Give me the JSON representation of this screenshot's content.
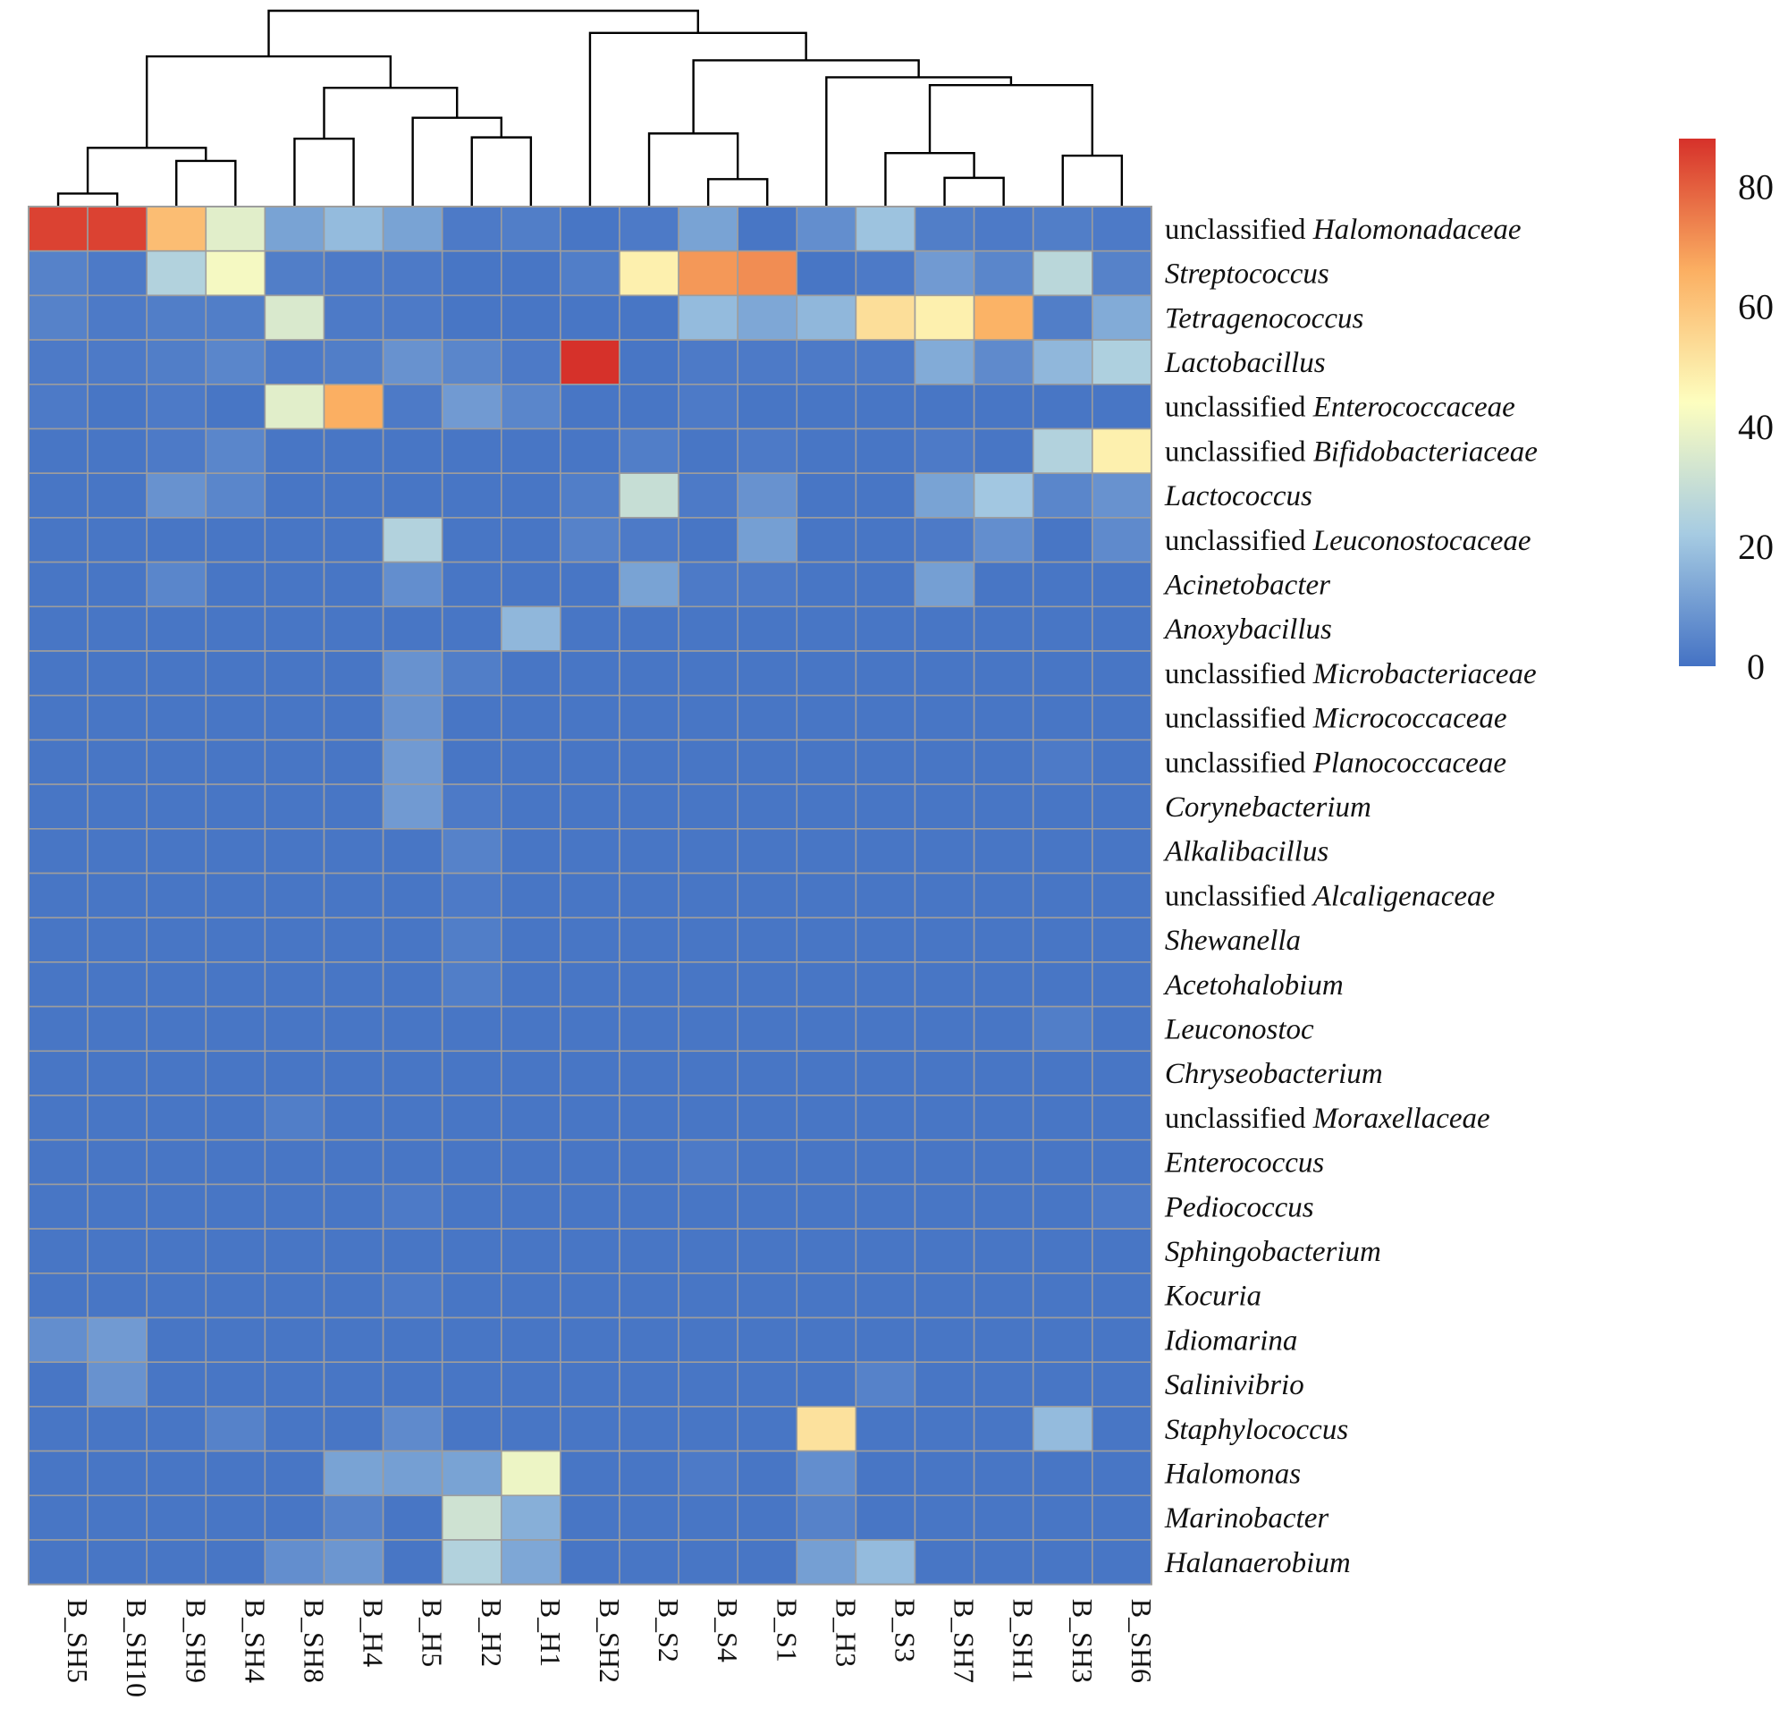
{
  "chart_data": {
    "type": "heatmap",
    "title": "",
    "columns": [
      "B_SH5",
      "B_SH10",
      "B_SH9",
      "B_SH4",
      "B_SH8",
      "B_H4",
      "B_H5",
      "B_H2",
      "B_H1",
      "B_SH2",
      "B_S2",
      "B_S4",
      "B_S1",
      "B_H3",
      "B_S3",
      "B_SH7",
      "B_SH1",
      "B_SH3",
      "B_SH6"
    ],
    "rows": [
      {
        "prefix": "unclassified ",
        "name": "Halomonadaceae"
      },
      {
        "prefix": "",
        "name": "Streptococcus"
      },
      {
        "prefix": "",
        "name": "Tetragenococcus"
      },
      {
        "prefix": "",
        "name": "Lactobacillus"
      },
      {
        "prefix": "unclassified ",
        "name": "Enterococcaceae"
      },
      {
        "prefix": "unclassified ",
        "name": "Bifidobacteriaceae"
      },
      {
        "prefix": "",
        "name": "Lactococcus"
      },
      {
        "prefix": "unclassified ",
        "name": "Leuconostocaceae"
      },
      {
        "prefix": "",
        "name": "Acinetobacter"
      },
      {
        "prefix": "",
        "name": "Anoxybacillus"
      },
      {
        "prefix": "unclassified ",
        "name": "Microbacteriaceae"
      },
      {
        "prefix": "unclassified ",
        "name": "Micrococcaceae"
      },
      {
        "prefix": "unclassified ",
        "name": "Planococcaceae"
      },
      {
        "prefix": "",
        "name": "Corynebacterium"
      },
      {
        "prefix": "",
        "name": "Alkalibacillus"
      },
      {
        "prefix": "unclassified ",
        "name": "Alcaligenaceae"
      },
      {
        "prefix": "",
        "name": "Shewanella"
      },
      {
        "prefix": "",
        "name": "Acetohalobium"
      },
      {
        "prefix": "",
        "name": "Leuconostoc"
      },
      {
        "prefix": "",
        "name": "Chryseobacterium"
      },
      {
        "prefix": "unclassified ",
        "name": "Moraxellaceae"
      },
      {
        "prefix": "",
        "name": "Enterococcus"
      },
      {
        "prefix": "",
        "name": "Pediococcus"
      },
      {
        "prefix": "",
        "name": "Sphingobacterium"
      },
      {
        "prefix": "",
        "name": "Kocuria"
      },
      {
        "prefix": "",
        "name": "Idiomarina"
      },
      {
        "prefix": "",
        "name": "Salinivibrio"
      },
      {
        "prefix": "",
        "name": "Staphylococcus"
      },
      {
        "prefix": "",
        "name": "Halomonas"
      },
      {
        "prefix": "",
        "name": "Marinobacter"
      },
      {
        "prefix": "",
        "name": "Halanaerobium"
      }
    ],
    "values": [
      [
        85,
        85,
        62,
        37,
        12,
        18,
        12,
        2,
        3,
        1,
        2,
        12,
        1,
        7,
        20,
        3,
        2,
        3,
        2
      ],
      [
        4,
        2,
        25,
        42,
        3,
        2,
        2,
        1,
        1,
        3,
        48,
        70,
        72,
        1,
        2,
        10,
        5,
        27,
        4
      ],
      [
        4,
        2,
        3,
        3,
        35,
        2,
        2,
        1,
        1,
        1,
        1,
        18,
        13,
        17,
        53,
        48,
        65,
        3,
        14
      ],
      [
        2,
        2,
        3,
        5,
        2,
        3,
        8,
        5,
        2,
        88,
        1,
        2,
        2,
        2,
        2,
        14,
        6,
        17,
        24
      ],
      [
        2,
        1,
        2,
        1,
        37,
        66,
        2,
        10,
        5,
        1,
        1,
        2,
        1,
        1,
        1,
        1,
        1,
        1,
        1
      ],
      [
        1,
        1,
        2,
        5,
        1,
        1,
        1,
        1,
        1,
        1,
        3,
        1,
        2,
        1,
        1,
        2,
        1,
        25,
        48
      ],
      [
        1,
        1,
        8,
        5,
        1,
        1,
        1,
        1,
        1,
        3,
        30,
        2,
        8,
        1,
        1,
        12,
        21,
        5,
        8
      ],
      [
        1,
        1,
        1,
        1,
        1,
        1,
        25,
        1,
        1,
        4,
        2,
        1,
        11,
        1,
        1,
        2,
        7,
        1,
        6
      ],
      [
        1,
        1,
        5,
        1,
        1,
        1,
        7,
        1,
        1,
        1,
        12,
        2,
        2,
        1,
        1,
        11,
        1,
        1,
        1
      ],
      [
        1,
        1,
        1,
        1,
        1,
        1,
        1,
        1,
        17,
        1,
        1,
        1,
        1,
        1,
        1,
        1,
        1,
        1,
        1
      ],
      [
        1,
        1,
        1,
        1,
        1,
        1,
        8,
        3,
        1,
        1,
        1,
        1,
        1,
        1,
        1,
        1,
        1,
        1,
        1
      ],
      [
        1,
        1,
        1,
        1,
        1,
        1,
        8,
        1,
        1,
        1,
        1,
        1,
        1,
        1,
        1,
        1,
        1,
        1,
        1
      ],
      [
        1,
        1,
        1,
        1,
        1,
        1,
        10,
        1,
        1,
        1,
        1,
        1,
        1,
        1,
        1,
        1,
        1,
        2,
        1
      ],
      [
        1,
        1,
        1,
        1,
        1,
        1,
        10,
        2,
        1,
        1,
        1,
        1,
        1,
        1,
        1,
        1,
        1,
        1,
        1
      ],
      [
        1,
        1,
        1,
        1,
        1,
        1,
        1,
        4,
        1,
        1,
        1,
        1,
        1,
        1,
        1,
        1,
        1,
        1,
        1
      ],
      [
        1,
        1,
        1,
        1,
        1,
        1,
        1,
        2,
        1,
        1,
        1,
        1,
        1,
        1,
        1,
        1,
        1,
        1,
        1
      ],
      [
        1,
        1,
        1,
        1,
        1,
        1,
        1,
        3,
        1,
        1,
        1,
        1,
        1,
        1,
        1,
        1,
        1,
        1,
        1
      ],
      [
        1,
        1,
        1,
        1,
        1,
        1,
        1,
        3,
        1,
        1,
        1,
        1,
        1,
        1,
        1,
        1,
        1,
        1,
        1
      ],
      [
        1,
        1,
        1,
        1,
        1,
        1,
        1,
        1,
        1,
        1,
        1,
        1,
        1,
        1,
        1,
        1,
        1,
        3,
        1
      ],
      [
        1,
        1,
        1,
        1,
        1,
        1,
        1,
        1,
        1,
        1,
        1,
        1,
        1,
        1,
        1,
        1,
        1,
        1,
        1
      ],
      [
        1,
        1,
        1,
        1,
        3,
        1,
        1,
        1,
        1,
        1,
        1,
        1,
        1,
        1,
        1,
        1,
        1,
        1,
        1
      ],
      [
        1,
        1,
        1,
        1,
        1,
        1,
        1,
        1,
        1,
        1,
        1,
        2,
        1,
        1,
        1,
        1,
        1,
        1,
        1
      ],
      [
        1,
        1,
        1,
        1,
        1,
        1,
        2,
        1,
        1,
        1,
        1,
        1,
        1,
        1,
        1,
        1,
        1,
        1,
        2
      ],
      [
        1,
        1,
        1,
        1,
        1,
        1,
        1,
        1,
        1,
        1,
        1,
        1,
        1,
        1,
        1,
        1,
        1,
        1,
        1
      ],
      [
        1,
        1,
        1,
        1,
        1,
        1,
        2,
        1,
        1,
        1,
        1,
        1,
        1,
        1,
        1,
        1,
        1,
        1,
        1
      ],
      [
        7,
        10,
        1,
        1,
        1,
        1,
        1,
        1,
        1,
        1,
        1,
        1,
        1,
        1,
        1,
        1,
        1,
        1,
        1
      ],
      [
        1,
        8,
        1,
        1,
        1,
        1,
        1,
        1,
        1,
        1,
        1,
        1,
        1,
        1,
        4,
        1,
        1,
        1,
        1
      ],
      [
        1,
        1,
        1,
        4,
        1,
        1,
        6,
        1,
        1,
        1,
        1,
        1,
        1,
        52,
        1,
        1,
        1,
        18,
        1
      ],
      [
        1,
        1,
        1,
        1,
        1,
        12,
        11,
        12,
        40,
        1,
        1,
        2,
        1,
        7,
        1,
        1,
        1,
        1,
        1
      ],
      [
        1,
        1,
        1,
        1,
        1,
        4,
        1,
        32,
        15,
        1,
        1,
        1,
        1,
        4,
        1,
        1,
        1,
        1,
        1
      ],
      [
        1,
        1,
        1,
        1,
        7,
        9,
        1,
        25,
        13,
        1,
        1,
        1,
        1,
        11,
        18,
        1,
        1,
        1,
        1
      ]
    ],
    "colorbar": {
      "ticks": [
        0,
        20,
        40,
        60,
        80
      ],
      "range": [
        0,
        88
      ],
      "colors": [
        "#4472c4",
        "#a6cbe2",
        "#fdfebf",
        "#fbaf62",
        "#d6312a"
      ]
    },
    "dendrogram": "column clustering tree above the heatmap"
  }
}
